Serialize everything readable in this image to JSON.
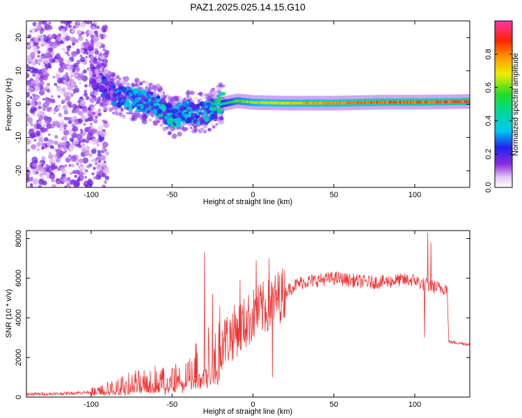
{
  "title": "PAZ1.2025.025.14.15.G10",
  "chart_data": [
    {
      "type": "heatmap",
      "title": "PAZ1.2025.025.14.15.G10",
      "xlabel": "Height of straight line (km)",
      "ylabel": "Frequency (Hz)",
      "xlim": [
        -140,
        134
      ],
      "ylim": [
        -25,
        25
      ],
      "xticks": [
        -100,
        -50,
        0,
        50,
        100
      ],
      "yticks": [
        -20,
        -10,
        0,
        10,
        20
      ],
      "grid": false,
      "colorbar": {
        "label": "Normalized spectral amplitude",
        "range": [
          0,
          1
        ],
        "ticks": [
          0.0,
          0.2,
          0.4,
          0.6,
          0.8
        ],
        "colormap": "rainbow (white-violet-blue-cyan-green-yellow-red-magenta)"
      },
      "ridge": {
        "description": "signal ridge centered near 0 Hz: scattered noise below -100 km, tracking segment -100 to -20 km, strong narrow line above -20 km",
        "x": [
          -100,
          -90,
          -80,
          -70,
          -60,
          -50,
          -40,
          -30,
          -20,
          -10,
          0,
          20,
          50,
          80,
          100,
          120,
          134
        ],
        "frequency": [
          9,
          4,
          2,
          1,
          0,
          -4,
          -2,
          -3,
          0,
          1,
          0.5,
          0.3,
          0.3,
          0.6,
          0.6,
          0.7,
          0.8
        ],
        "amplitude": [
          0.15,
          0.25,
          0.3,
          0.35,
          0.35,
          0.4,
          0.35,
          0.35,
          0.45,
          0.6,
          0.65,
          0.75,
          0.8,
          0.85,
          0.85,
          0.85,
          0.85
        ]
      }
    },
    {
      "type": "line",
      "xlabel": "Height of straight line (km)",
      "ylabel": "SNR (10 * v/v)",
      "xlim": [
        -140,
        134
      ],
      "ylim": [
        0,
        8400
      ],
      "xticks": [
        -100,
        -50,
        0,
        50,
        100
      ],
      "yticks": [
        0,
        2000,
        4000,
        6000,
        8000
      ],
      "grid": false,
      "color": "#ee3333",
      "series": [
        {
          "x": [
            -140,
            -120,
            -100,
            -90,
            -80,
            -70,
            -60,
            -50,
            -40,
            -35,
            -30,
            -25,
            -20,
            -15,
            -10,
            -5,
            0,
            5,
            10,
            15,
            20,
            25,
            30,
            40,
            50,
            60,
            70,
            80,
            90,
            100,
            105,
            110,
            115,
            120,
            121,
            125,
            130,
            134
          ],
          "y": [
            150,
            170,
            250,
            400,
            600,
            800,
            900,
            1000,
            1200,
            1500,
            2000,
            2300,
            2700,
            3000,
            3400,
            3700,
            4100,
            4400,
            4600,
            5000,
            5300,
            5600,
            5800,
            5900,
            6000,
            5900,
            5800,
            5800,
            5900,
            5900,
            5700,
            5600,
            5500,
            5500,
            2800,
            2750,
            2700,
            2650
          ]
        }
      ],
      "spikes": [
        {
          "x": -30,
          "y": 7300
        },
        {
          "x": -25,
          "y": 5200
        },
        {
          "x": -8,
          "y": 5900
        },
        {
          "x": 2,
          "y": 6900
        },
        {
          "x": 10,
          "y": 7000
        },
        {
          "x": 12,
          "y": 1000
        },
        {
          "x": 108,
          "y": 8300
        },
        {
          "x": 110,
          "y": 7800
        },
        {
          "x": 106,
          "y": 3000
        }
      ]
    }
  ]
}
